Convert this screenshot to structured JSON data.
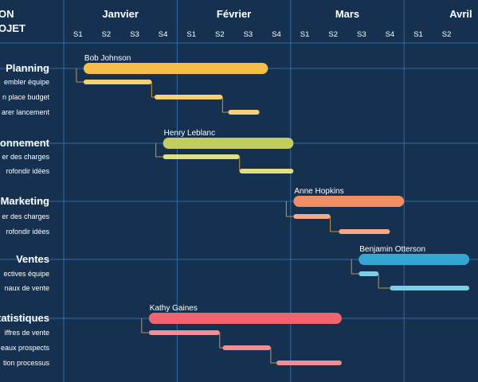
{
  "header": {
    "corner_line1": "ON",
    "corner_line2": "OJET"
  },
  "colors": {
    "background": "#15314f",
    "grid": "#2f6aa8",
    "connector": "#c4944a"
  },
  "chart_data": {
    "type": "gantt",
    "months": [
      "Janvier",
      "Février",
      "Mars",
      "Avril"
    ],
    "weeks": [
      "S1",
      "S2",
      "S3",
      "S4",
      "S1",
      "S2",
      "S3",
      "S4",
      "S1",
      "S2",
      "S3",
      "S4",
      "S1",
      "S2"
    ],
    "x_unit": "weeks from start of Janvier",
    "phases": [
      {
        "name": "Planning",
        "owner": "Bob Johnson",
        "start": 0.7,
        "end": 7.2,
        "color": "#f5be4a",
        "tasks": [
          {
            "label": "embler équipe",
            "start": 0.7,
            "end": 3.1,
            "color": "#f7d176"
          },
          {
            "label": "n place budget",
            "start": 3.2,
            "end": 5.6,
            "color": "#f7d176"
          },
          {
            "label": "arer lancement",
            "start": 5.8,
            "end": 6.9,
            "color": "#f7d176"
          }
        ]
      },
      {
        "name": "onnement",
        "owner": "Henry Leblanc",
        "start": 3.5,
        "end": 8.1,
        "color": "#c3cc5f",
        "tasks": [
          {
            "label": "er des charges",
            "start": 3.5,
            "end": 6.2,
            "color": "#dee17e"
          },
          {
            "label": "rofondir idées",
            "start": 6.2,
            "end": 8.1,
            "color": "#dee17e"
          }
        ]
      },
      {
        "name": "Marketing",
        "owner": "Anne Hopkins",
        "start": 8.1,
        "end": 12.0,
        "color": "#f08d63",
        "tasks": [
          {
            "label": "er des charges",
            "start": 8.1,
            "end": 9.4,
            "color": "#f4a98a"
          },
          {
            "label": "rofondir idées",
            "start": 9.7,
            "end": 11.5,
            "color": "#f4a98a"
          }
        ]
      },
      {
        "name": "Ventes",
        "owner": "Benjamin Otterson",
        "start": 10.4,
        "end": 14.3,
        "color": "#35a6d2",
        "tasks": [
          {
            "label": "ectives équipe",
            "start": 10.4,
            "end": 11.1,
            "color": "#7dcde8"
          },
          {
            "label": "naux de vente",
            "start": 11.5,
            "end": 14.3,
            "color": "#7dcde8"
          }
        ]
      },
      {
        "name": "tatistiques",
        "owner": "Kathy Gaines",
        "start": 3.0,
        "end": 9.8,
        "color": "#f0636f",
        "tasks": [
          {
            "label": "iffres de vente",
            "start": 3.0,
            "end": 5.5,
            "color": "#f28e97"
          },
          {
            "label": "eaux prospects",
            "start": 5.6,
            "end": 7.3,
            "color": "#f28e97"
          },
          {
            "label": "tion processus",
            "start": 7.5,
            "end": 9.8,
            "color": "#f28e97"
          }
        ]
      }
    ]
  }
}
